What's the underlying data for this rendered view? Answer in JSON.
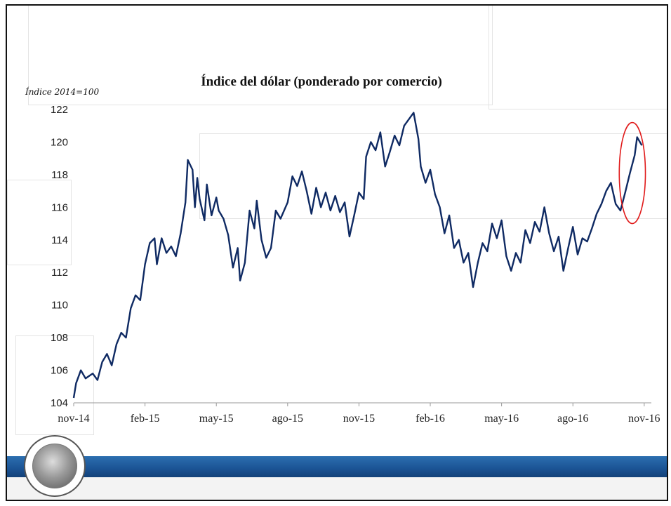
{
  "chart_data": {
    "type": "line",
    "title": "Índice del dólar (ponderado por comercio)",
    "ylabel": "Índice 2014=100",
    "xlabel": "",
    "ylim": [
      104,
      122
    ],
    "yticks": [
      104,
      106,
      108,
      110,
      112,
      114,
      116,
      118,
      120,
      122
    ],
    "xticks": [
      "nov-14",
      "feb-15",
      "may-15",
      "ago-15",
      "nov-15",
      "feb-16",
      "may-16",
      "ago-16",
      "nov-16"
    ],
    "x_range_months": [
      0,
      24.3
    ],
    "grid": false,
    "legend": "none",
    "series": [
      {
        "color": "#0f2a63",
        "points": [
          [
            0.0,
            104.3
          ],
          [
            0.1,
            105.2
          ],
          [
            0.3,
            106.0
          ],
          [
            0.5,
            105.5
          ],
          [
            0.8,
            105.8
          ],
          [
            1.0,
            105.4
          ],
          [
            1.2,
            106.5
          ],
          [
            1.4,
            107.0
          ],
          [
            1.6,
            106.3
          ],
          [
            1.8,
            107.6
          ],
          [
            2.0,
            108.3
          ],
          [
            2.2,
            108.0
          ],
          [
            2.4,
            109.8
          ],
          [
            2.6,
            110.6
          ],
          [
            2.8,
            110.3
          ],
          [
            3.0,
            112.5
          ],
          [
            3.2,
            113.8
          ],
          [
            3.4,
            114.1
          ],
          [
            3.5,
            112.5
          ],
          [
            3.7,
            114.1
          ],
          [
            3.9,
            113.2
          ],
          [
            4.1,
            113.6
          ],
          [
            4.3,
            113.0
          ],
          [
            4.5,
            114.4
          ],
          [
            4.7,
            116.3
          ],
          [
            4.8,
            118.9
          ],
          [
            5.0,
            118.3
          ],
          [
            5.1,
            116.0
          ],
          [
            5.2,
            117.8
          ],
          [
            5.3,
            116.5
          ],
          [
            5.5,
            115.2
          ],
          [
            5.6,
            117.4
          ],
          [
            5.8,
            115.5
          ],
          [
            6.0,
            116.6
          ],
          [
            6.1,
            115.8
          ],
          [
            6.3,
            115.3
          ],
          [
            6.5,
            114.3
          ],
          [
            6.7,
            112.3
          ],
          [
            6.9,
            113.5
          ],
          [
            7.0,
            111.5
          ],
          [
            7.2,
            112.6
          ],
          [
            7.4,
            115.8
          ],
          [
            7.6,
            114.7
          ],
          [
            7.7,
            116.4
          ],
          [
            7.9,
            114.0
          ],
          [
            8.1,
            112.9
          ],
          [
            8.3,
            113.5
          ],
          [
            8.5,
            115.8
          ],
          [
            8.7,
            115.3
          ],
          [
            9.0,
            116.3
          ],
          [
            9.2,
            117.9
          ],
          [
            9.4,
            117.3
          ],
          [
            9.6,
            118.2
          ],
          [
            9.8,
            117.0
          ],
          [
            10.0,
            115.6
          ],
          [
            10.2,
            117.2
          ],
          [
            10.4,
            116.0
          ],
          [
            10.6,
            116.9
          ],
          [
            10.8,
            115.8
          ],
          [
            11.0,
            116.7
          ],
          [
            11.2,
            115.7
          ],
          [
            11.4,
            116.3
          ],
          [
            11.6,
            114.2
          ],
          [
            11.8,
            115.5
          ],
          [
            12.0,
            116.9
          ],
          [
            12.2,
            116.5
          ],
          [
            12.3,
            119.1
          ],
          [
            12.5,
            120.0
          ],
          [
            12.7,
            119.5
          ],
          [
            12.9,
            120.6
          ],
          [
            13.1,
            118.5
          ],
          [
            13.3,
            119.4
          ],
          [
            13.5,
            120.4
          ],
          [
            13.7,
            119.8
          ],
          [
            13.9,
            121.0
          ],
          [
            14.1,
            121.4
          ],
          [
            14.3,
            121.8
          ],
          [
            14.5,
            120.2
          ],
          [
            14.6,
            118.5
          ],
          [
            14.8,
            117.5
          ],
          [
            15.0,
            118.3
          ],
          [
            15.2,
            116.8
          ],
          [
            15.4,
            116.0
          ],
          [
            15.6,
            114.4
          ],
          [
            15.8,
            115.5
          ],
          [
            16.0,
            113.5
          ],
          [
            16.2,
            114.0
          ],
          [
            16.4,
            112.6
          ],
          [
            16.6,
            113.2
          ],
          [
            16.8,
            111.1
          ],
          [
            17.0,
            112.6
          ],
          [
            17.2,
            113.8
          ],
          [
            17.4,
            113.3
          ],
          [
            17.6,
            115.0
          ],
          [
            17.8,
            114.1
          ],
          [
            18.0,
            115.2
          ],
          [
            18.2,
            113.0
          ],
          [
            18.4,
            112.1
          ],
          [
            18.6,
            113.2
          ],
          [
            18.8,
            112.6
          ],
          [
            19.0,
            114.6
          ],
          [
            19.2,
            113.8
          ],
          [
            19.4,
            115.1
          ],
          [
            19.6,
            114.5
          ],
          [
            19.8,
            116.0
          ],
          [
            20.0,
            114.4
          ],
          [
            20.2,
            113.3
          ],
          [
            20.4,
            114.2
          ],
          [
            20.6,
            112.1
          ],
          [
            20.8,
            113.5
          ],
          [
            21.0,
            114.8
          ],
          [
            21.2,
            113.1
          ],
          [
            21.4,
            114.1
          ],
          [
            21.6,
            113.9
          ],
          [
            21.8,
            114.7
          ],
          [
            22.0,
            115.6
          ],
          [
            22.2,
            116.2
          ],
          [
            22.4,
            117.0
          ],
          [
            22.6,
            117.5
          ],
          [
            22.8,
            116.2
          ],
          [
            23.0,
            115.8
          ],
          [
            23.2,
            116.9
          ],
          [
            23.4,
            118.1
          ],
          [
            23.6,
            119.2
          ],
          [
            23.7,
            120.3
          ],
          [
            23.9,
            119.8
          ]
        ]
      }
    ],
    "highlight": {
      "x_center": 23.5,
      "y_center": 118.1,
      "x_radius_months": 0.55,
      "y_radius": 3.1,
      "color": "#e01a1a"
    }
  }
}
